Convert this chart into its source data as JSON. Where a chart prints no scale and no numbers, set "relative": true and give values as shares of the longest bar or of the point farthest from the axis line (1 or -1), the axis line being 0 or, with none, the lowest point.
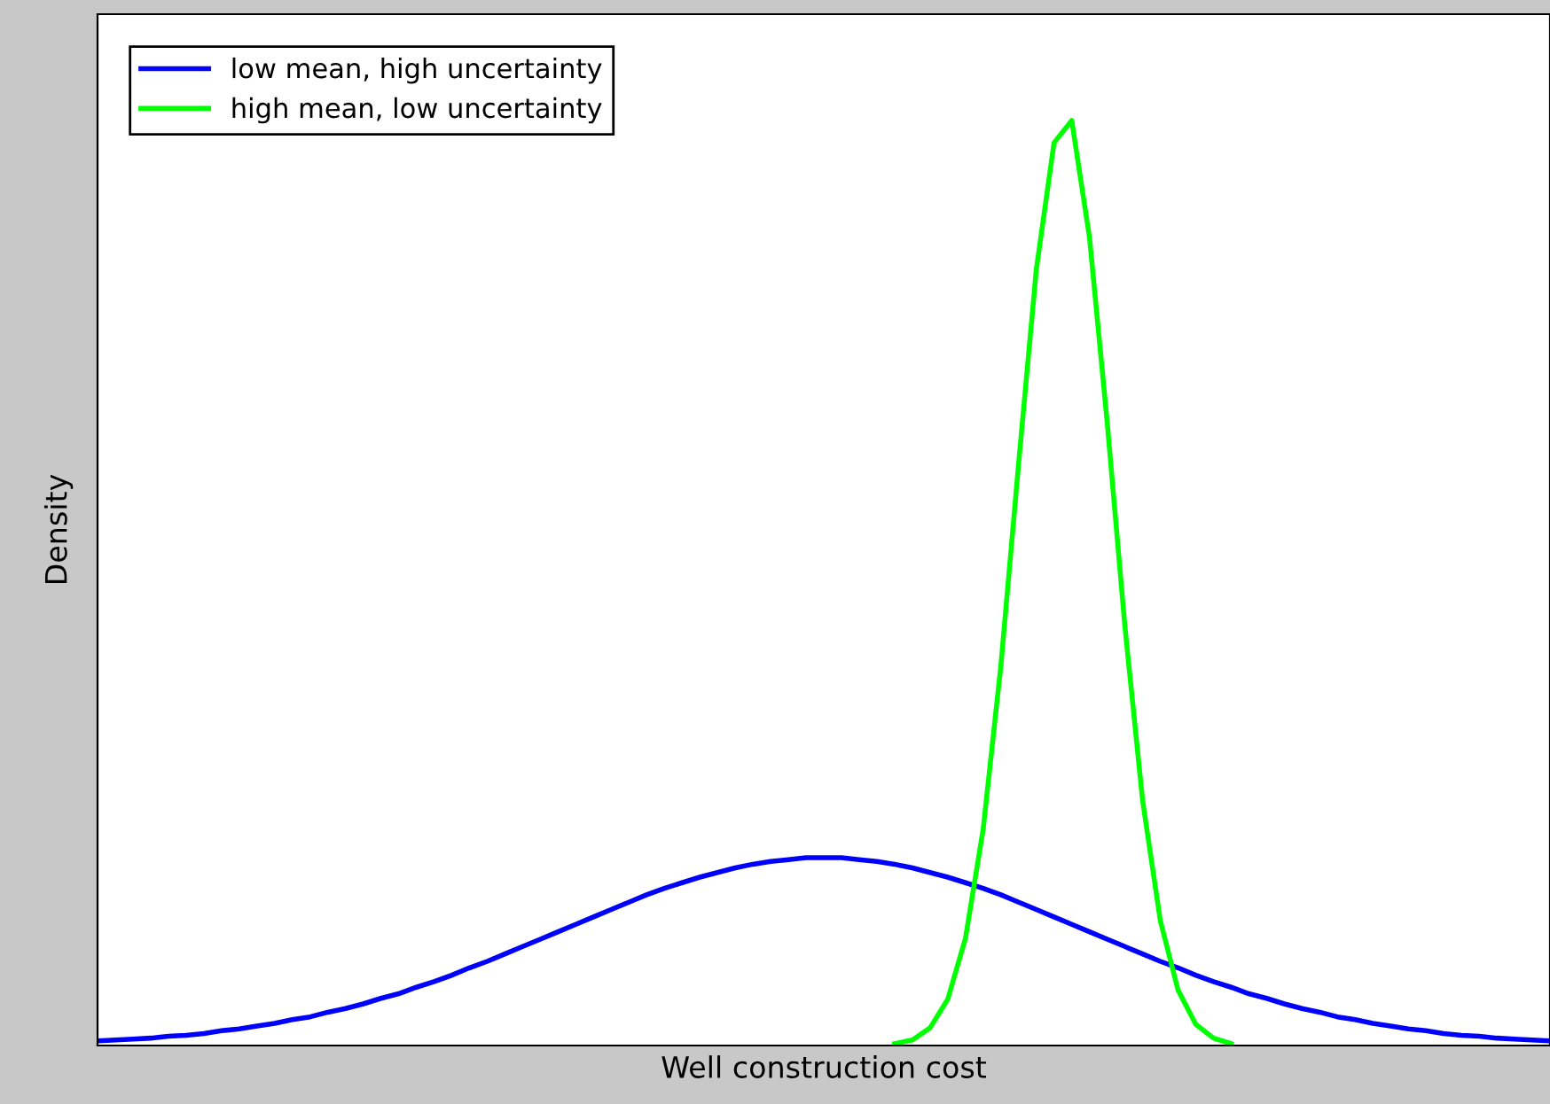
{
  "chart_data": {
    "type": "line",
    "relative": true,
    "xlabel": "Well construction cost",
    "ylabel": "Density",
    "legend": "top left",
    "marker": "none",
    "line_style": "solid",
    "tick_labels": false,
    "categories": [
      null,
      null,
      null,
      null,
      null,
      null,
      null,
      null,
      null,
      null,
      null,
      null,
      null,
      null,
      null,
      null,
      null,
      null,
      null,
      null,
      null,
      null,
      null,
      null,
      null,
      null,
      null,
      null,
      null,
      null,
      null,
      null,
      null,
      null,
      null,
      null,
      null,
      null,
      null,
      null,
      null,
      null,
      null,
      null,
      null,
      null,
      null,
      null,
      null,
      null,
      null,
      null,
      null,
      null,
      null,
      null,
      null,
      null,
      null,
      null,
      null,
      null,
      null,
      null,
      null,
      null,
      null,
      null,
      null,
      null,
      null,
      null,
      null,
      null,
      null,
      null,
      null,
      null,
      null,
      null,
      null,
      null,
      null
    ],
    "series": [
      {
        "name": "low mean, high uncertainty",
        "color": "#0000ff",
        "values": [
          0.005,
          0.006,
          0.007,
          0.008,
          0.01,
          0.011,
          0.013,
          0.016,
          0.018,
          0.021,
          0.024,
          0.028,
          0.031,
          0.036,
          0.04,
          0.045,
          0.051,
          0.056,
          0.063,
          0.069,
          0.076,
          0.084,
          0.091,
          0.099,
          0.107,
          0.115,
          0.123,
          0.131,
          0.139,
          0.147,
          0.155,
          0.163,
          0.17,
          0.176,
          0.182,
          0.187,
          0.192,
          0.196,
          0.199,
          0.201,
          0.203,
          0.203,
          0.203,
          0.201,
          0.199,
          0.196,
          0.192,
          0.187,
          0.182,
          0.176,
          0.17,
          0.163,
          0.155,
          0.147,
          0.139,
          0.131,
          0.123,
          0.115,
          0.107,
          0.099,
          0.091,
          0.084,
          0.076,
          0.069,
          0.063,
          0.056,
          0.051,
          0.045,
          0.04,
          0.036,
          0.031,
          0.028,
          0.024,
          0.021,
          0.018,
          0.016,
          0.013,
          0.011,
          0.01,
          0.008,
          0.007,
          0.006,
          0.005
        ]
      },
      {
        "name": "high mean, low uncertainty",
        "color": "#00ff00",
        "values": [
          null,
          null,
          null,
          null,
          null,
          null,
          null,
          null,
          null,
          null,
          null,
          null,
          null,
          null,
          null,
          null,
          null,
          null,
          null,
          null,
          null,
          null,
          null,
          null,
          null,
          null,
          null,
          null,
          null,
          null,
          null,
          null,
          null,
          null,
          null,
          null,
          null,
          null,
          null,
          null,
          null,
          null,
          null,
          null,
          null,
          0.002,
          0.006,
          0.019,
          0.05,
          0.116,
          0.234,
          0.411,
          0.629,
          0.839,
          0.976,
          1.0,
          0.874,
          0.674,
          0.453,
          0.265,
          0.135,
          0.06,
          0.023,
          0.008,
          0.002,
          null,
          null,
          null,
          null,
          null,
          null,
          null,
          null,
          null,
          null,
          null,
          null,
          null,
          null,
          null,
          null,
          null,
          null
        ]
      }
    ]
  }
}
